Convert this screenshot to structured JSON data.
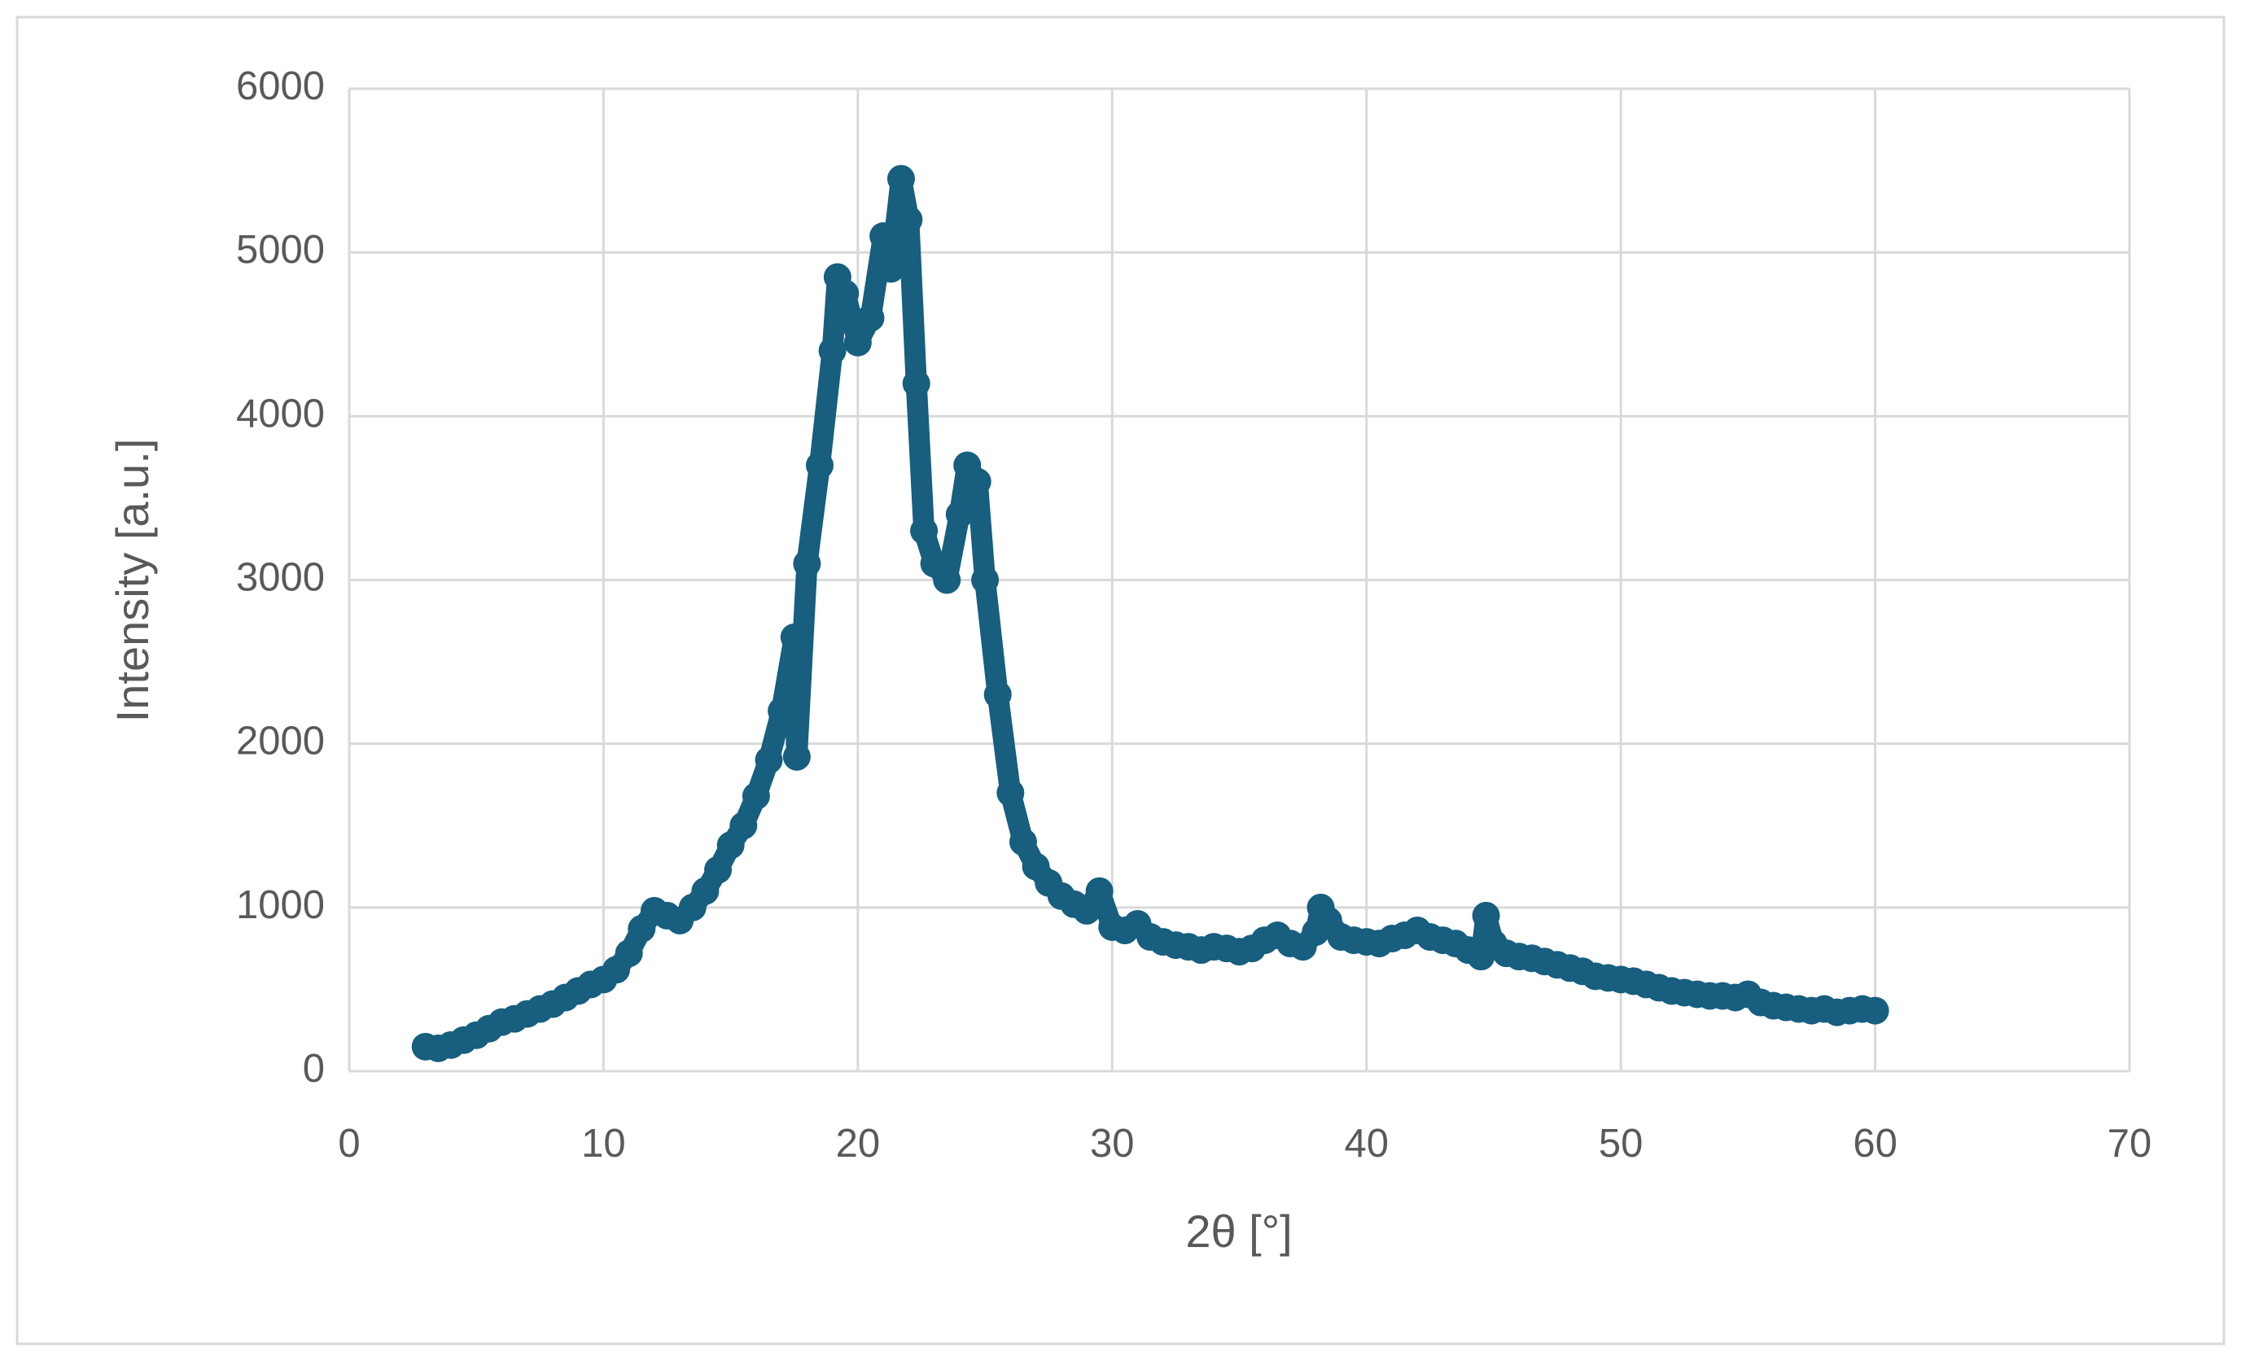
{
  "chart_data": {
    "type": "scatter",
    "x_label": "2θ [°]",
    "y_label": "Intensity [a.u.]",
    "x": [
      3,
      3.5,
      4,
      4.5,
      5,
      5.5,
      6,
      6.5,
      7,
      7.5,
      8,
      8.5,
      9,
      9.5,
      10,
      10.5,
      11,
      11.5,
      12,
      12.5,
      13,
      13.5,
      14,
      14.5,
      15,
      15.5,
      16,
      16.5,
      17,
      17.5,
      17.6,
      18,
      18.5,
      19,
      19.2,
      19.5,
      20,
      20.5,
      21,
      21.3,
      21.7,
      22,
      22.3,
      22.6,
      23,
      23.5,
      24,
      24.3,
      24.7,
      25,
      25.5,
      26,
      26.5,
      27,
      27.5,
      28,
      28.5,
      29,
      29.5,
      30,
      30.5,
      31,
      31.5,
      32,
      32.5,
      33,
      33.5,
      34,
      34.5,
      35,
      35.5,
      36,
      36.5,
      37,
      37.5,
      38,
      38.2,
      38.5,
      39,
      39.5,
      40,
      40.5,
      41,
      41.5,
      42,
      42.5,
      43,
      43.5,
      44,
      44.5,
      44.7,
      45,
      45.5,
      46,
      46.5,
      47,
      47.5,
      48,
      48.5,
      49,
      49.5,
      50,
      50.5,
      51,
      51.5,
      52,
      52.5,
      53,
      53.5,
      54,
      54.5,
      55,
      55.5,
      56,
      56.5,
      57,
      57.5,
      58,
      58.5,
      59,
      59.5,
      60
    ],
    "series": [
      {
        "name": "Intensity",
        "color": "#175e7f",
        "values": [
          150,
          140,
          160,
          190,
          220,
          260,
          300,
          320,
          350,
          380,
          410,
          450,
          490,
          530,
          560,
          620,
          720,
          870,
          980,
          950,
          920,
          1000,
          1100,
          1230,
          1380,
          1500,
          1680,
          1900,
          2200,
          2650,
          1920,
          3100,
          3700,
          4400,
          4850,
          4750,
          4450,
          4600,
          5100,
          4900,
          5450,
          5200,
          4200,
          3300,
          3100,
          3000,
          3400,
          3700,
          3600,
          3000,
          2300,
          1700,
          1400,
          1250,
          1150,
          1070,
          1020,
          980,
          1100,
          880,
          860,
          900,
          820,
          790,
          770,
          760,
          740,
          760,
          750,
          730,
          750,
          800,
          830,
          780,
          760,
          850,
          1000,
          920,
          820,
          800,
          790,
          780,
          810,
          830,
          860,
          820,
          800,
          780,
          740,
          700,
          950,
          780,
          720,
          700,
          690,
          670,
          650,
          630,
          610,
          580,
          570,
          560,
          550,
          530,
          510,
          490,
          480,
          470,
          460,
          460,
          450,
          470,
          420,
          400,
          390,
          380,
          370,
          380,
          360,
          370,
          380,
          370
        ]
      }
    ],
    "xlim": [
      0,
      70
    ],
    "xticks": [
      0,
      10,
      20,
      30,
      40,
      50,
      60,
      70
    ],
    "ylim": [
      0,
      6000
    ],
    "yticks": [
      0,
      1000,
      2000,
      3000,
      4000,
      5000,
      6000
    ],
    "grid": true
  }
}
